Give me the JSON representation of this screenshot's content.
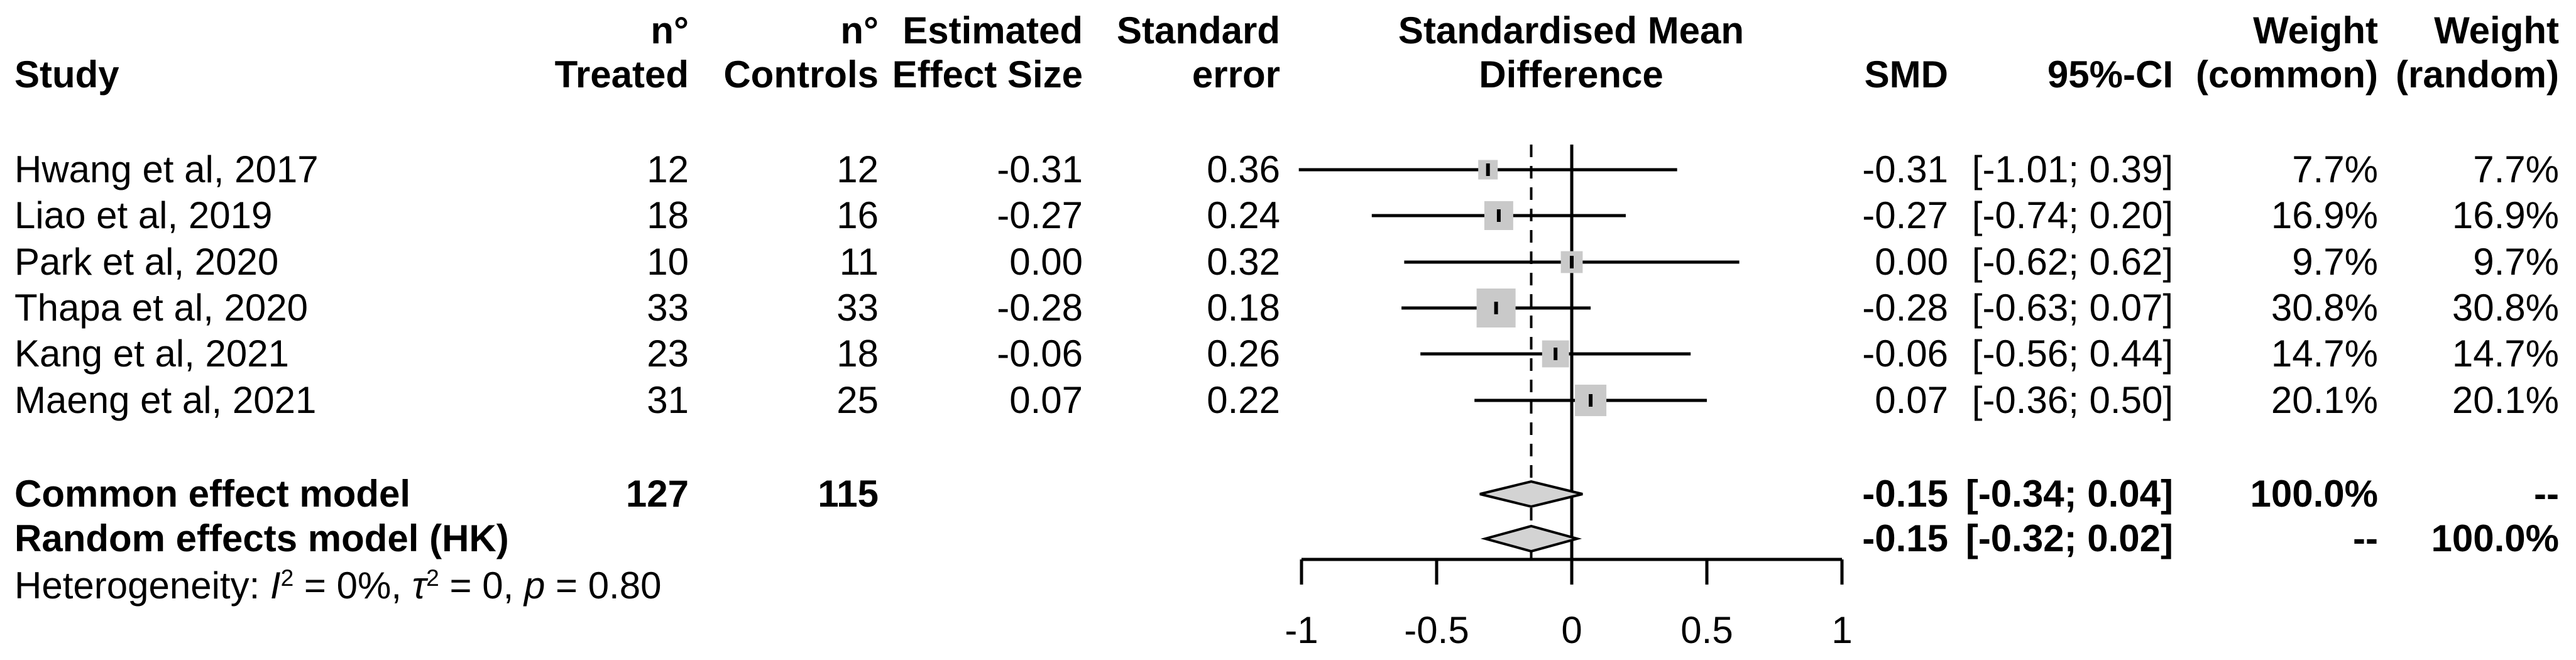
{
  "colors": {
    "square_fill": "#c9c9c9",
    "diamond_fill": "#d3d3d3",
    "line": "#000000",
    "background": "#ffffff"
  },
  "header": {
    "study": "Study",
    "n_treated": [
      "n°",
      "Treated"
    ],
    "n_controls": [
      "n°",
      "Controls"
    ],
    "effect": [
      "Estimated",
      "Effect Size"
    ],
    "se": [
      "Standard",
      "error"
    ],
    "plot": [
      "Standardised Mean",
      "Difference"
    ],
    "smd": "SMD",
    "ci": "95%-CI",
    "weight_common": [
      "Weight",
      "(common)"
    ],
    "weight_random": [
      "Weight",
      "(random)"
    ]
  },
  "chart_data": {
    "type": "forest",
    "x_axis": {
      "xlim": [
        -1.05,
        1.05
      ],
      "ticks": [
        -1,
        -0.5,
        0,
        0.5,
        1
      ],
      "tick_labels": [
        "-1",
        "-0.5",
        "0",
        "0.5",
        "1"
      ]
    },
    "reference_line": 0,
    "pooled_effect_line": -0.15,
    "studies": [
      {
        "study": "Hwang et al, 2017",
        "n_treated": "12",
        "n_controls": "12",
        "effect_size": "-0.31",
        "std_error": "0.36",
        "smd": -0.31,
        "ci_low": -1.01,
        "ci_high": 0.39,
        "smd_label": "-0.31",
        "ci_label": "[-1.01; 0.39]",
        "weight_common": "7.7%",
        "weight_random": "7.7%",
        "weight_pct": 7.7
      },
      {
        "study": "Liao et al, 2019",
        "n_treated": "18",
        "n_controls": "16",
        "effect_size": "-0.27",
        "std_error": "0.24",
        "smd": -0.27,
        "ci_low": -0.74,
        "ci_high": 0.2,
        "smd_label": "-0.27",
        "ci_label": "[-0.74; 0.20]",
        "weight_common": "16.9%",
        "weight_random": "16.9%",
        "weight_pct": 16.9
      },
      {
        "study": "Park et al, 2020",
        "n_treated": "10",
        "n_controls": "11",
        "effect_size": "0.00",
        "std_error": "0.32",
        "smd": 0.0,
        "ci_low": -0.62,
        "ci_high": 0.62,
        "smd_label": "0.00",
        "ci_label": "[-0.62; 0.62]",
        "weight_common": "9.7%",
        "weight_random": "9.7%",
        "weight_pct": 9.7
      },
      {
        "study": "Thapa et al, 2020",
        "n_treated": "33",
        "n_controls": "33",
        "effect_size": "-0.28",
        "std_error": "0.18",
        "smd": -0.28,
        "ci_low": -0.63,
        "ci_high": 0.07,
        "smd_label": "-0.28",
        "ci_label": "[-0.63; 0.07]",
        "weight_common": "30.8%",
        "weight_random": "30.8%",
        "weight_pct": 30.8
      },
      {
        "study": "Kang et al, 2021",
        "n_treated": "23",
        "n_controls": "18",
        "effect_size": "-0.06",
        "std_error": "0.26",
        "smd": -0.06,
        "ci_low": -0.56,
        "ci_high": 0.44,
        "smd_label": "-0.06",
        "ci_label": "[-0.56; 0.44]",
        "weight_common": "14.7%",
        "weight_random": "14.7%",
        "weight_pct": 14.7
      },
      {
        "study": "Maeng et al, 2021",
        "n_treated": "31",
        "n_controls": "25",
        "effect_size": "0.07",
        "std_error": "0.22",
        "smd": 0.07,
        "ci_low": -0.36,
        "ci_high": 0.5,
        "smd_label": "0.07",
        "ci_label": "[-0.36; 0.50]",
        "weight_common": "20.1%",
        "weight_random": "20.1%",
        "weight_pct": 20.1
      }
    ],
    "pooled": [
      {
        "label": "Common effect model",
        "n_treated": "127",
        "n_controls": "115",
        "smd": -0.15,
        "ci_low": -0.34,
        "ci_high": 0.04,
        "smd_label": "-0.15",
        "ci_label": "[-0.34; 0.04]",
        "weight_common": "100.0%",
        "weight_random": "--"
      },
      {
        "label": "Random effects model (HK)",
        "smd": -0.15,
        "ci_low": -0.32,
        "ci_high": 0.02,
        "smd_label": "-0.15",
        "ci_label": "[-0.32; 0.02]",
        "weight_common": "--",
        "weight_random": "100.0%"
      }
    ],
    "heterogeneity": {
      "prefix": "Heterogeneity: ",
      "i_sym": "I",
      "i_sup": "2",
      "i_rest": " = 0%, ",
      "tau_sym": "τ",
      "tau_sup": "2",
      "tau_rest": " = 0, ",
      "p_sym": "p",
      "p_rest": " = 0.80"
    }
  }
}
